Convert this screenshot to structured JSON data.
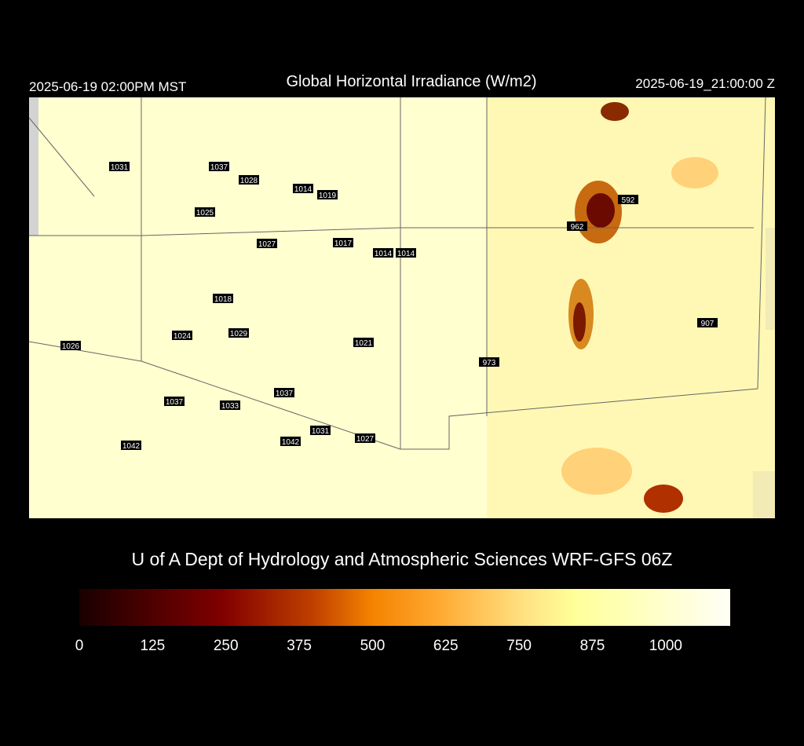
{
  "header": {
    "left": "2025-06-19 02:00PM MST",
    "title": "Global Horizontal Irradiance (W/m2)",
    "right": "2025-06-19_21:00:00 Z"
  },
  "map_labels": [
    "1031",
    "1037",
    "1028",
    "1014",
    "1019",
    "1025",
    "592",
    "962",
    "1027",
    "1017",
    "1014",
    "1014",
    "1018",
    "1024",
    "1029",
    "1026",
    "1021",
    "907",
    "973",
    "1037",
    "1037",
    "1033",
    "1031",
    "1042",
    "1027",
    "1042"
  ],
  "credit": "U of A Dept of Hydrology and Atmospheric Sciences WRF-GFS 06Z",
  "colorbar": {
    "range": [
      0,
      1110
    ],
    "ticks": [
      0,
      125,
      250,
      375,
      500,
      625,
      750,
      875,
      1000
    ]
  }
}
